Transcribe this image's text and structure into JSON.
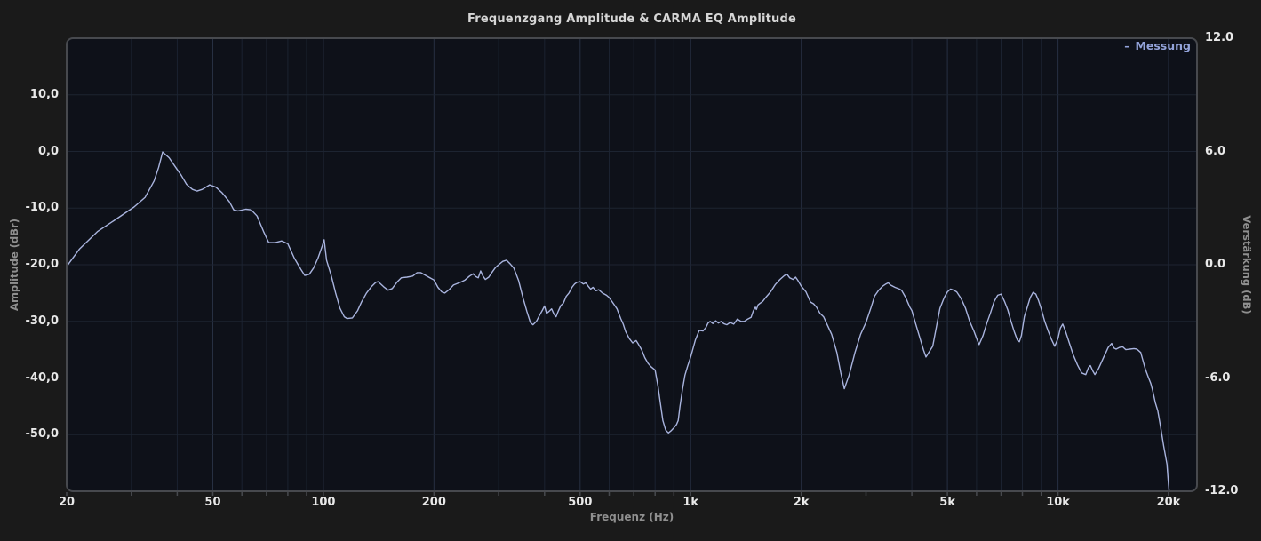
{
  "title": "Frequenzgang Amplitude & CARMA EQ Amplitude",
  "legend": {
    "dash": "–",
    "label": "Messung"
  },
  "axes": {
    "x": {
      "label": "Frequenz (Hz)",
      "scale": "log",
      "min": 20,
      "max": 24000,
      "ticks": [
        "20",
        "50",
        "100",
        "200",
        "500",
        "1k",
        "2k",
        "5k",
        "10k",
        "20k"
      ],
      "tick_values": [
        20,
        50,
        100,
        200,
        500,
        1000,
        2000,
        5000,
        10000,
        20000
      ]
    },
    "y_left": {
      "label": "Amplitude (dBr)",
      "min": -60,
      "max": 20,
      "ticks": [
        "10,0",
        "0,0",
        "-10,0",
        "-20,0",
        "-30,0",
        "-40,0",
        "-50,0"
      ],
      "tick_values": [
        10,
        0,
        -10,
        -20,
        -30,
        -40,
        -50
      ],
      "grid_values": [
        10,
        0,
        -10,
        -20,
        -30,
        -40,
        -50
      ]
    },
    "y_right": {
      "label": "Verstärkung (dB)",
      "min": -12,
      "max": 12,
      "ticks": [
        "12.0",
        "6.0",
        "0.0",
        "-6.0",
        "-12.0"
      ],
      "tick_values": [
        12,
        6,
        0,
        -6,
        -12
      ]
    }
  },
  "colors": {
    "outer_bg": "#1a1a1a",
    "plot_bg": "#0e1119",
    "grid_minor": "#1b2230",
    "grid_major": "#273042",
    "grid_h": "#1d2431",
    "border": "#47494e",
    "curve": "#a9b4de",
    "title_text": "#d6d6d6",
    "tick_text": "#e9e9e9",
    "axis_title_text": "#8f8f8f",
    "legend_text": "#93a3da"
  },
  "chart_data": {
    "type": "line",
    "title": "Frequenzgang Amplitude & CARMA EQ Amplitude",
    "xlabel": "Frequenz (Hz)",
    "ylabel_left": "Amplitude (dBr)",
    "ylabel_right": "Verstärkung (dB)",
    "x_scale": "log",
    "x_range": [
      20,
      24000
    ],
    "y_left_range": [
      -60,
      20
    ],
    "y_right_range": [
      -12,
      12
    ],
    "grid": true,
    "legend_position": "top-right",
    "series": [
      {
        "name": "Messung",
        "color": "#a9b4de",
        "units": "dBr",
        "points": [
          [
            20,
            -20.3
          ],
          [
            21.7,
            -17.2
          ],
          [
            24.3,
            -14.1
          ],
          [
            27.2,
            -12
          ],
          [
            30.5,
            -9.8
          ],
          [
            32.7,
            -8.1
          ],
          [
            34.6,
            -5.2
          ],
          [
            35.6,
            -2.8
          ],
          [
            36.5,
            -0.1
          ],
          [
            38,
            -1.1
          ],
          [
            39.5,
            -2.7
          ],
          [
            41,
            -4.2
          ],
          [
            42.4,
            -5.8
          ],
          [
            44,
            -6.7
          ],
          [
            45.3,
            -7
          ],
          [
            46.8,
            -6.7
          ],
          [
            49,
            -5.9
          ],
          [
            51,
            -6.3
          ],
          [
            53,
            -7.3
          ],
          [
            55.5,
            -8.9
          ],
          [
            57,
            -10.3
          ],
          [
            58.5,
            -10.5
          ],
          [
            61.5,
            -10.2
          ],
          [
            63.6,
            -10.3
          ],
          [
            66,
            -11.4
          ],
          [
            68.7,
            -14.1
          ],
          [
            71,
            -16.1
          ],
          [
            74,
            -16.1
          ],
          [
            77,
            -15.8
          ],
          [
            80,
            -16.3
          ],
          [
            83.3,
            -18.8
          ],
          [
            86.8,
            -20.8
          ],
          [
            89,
            -21.9
          ],
          [
            91.5,
            -21.7
          ],
          [
            94,
            -20.6
          ],
          [
            96.7,
            -18.8
          ],
          [
            99.3,
            -16.7
          ],
          [
            100.5,
            -15.6
          ],
          [
            102,
            -19.2
          ],
          [
            105,
            -21.9
          ],
          [
            108,
            -25
          ],
          [
            111,
            -27.7
          ],
          [
            114,
            -29.2
          ],
          [
            116,
            -29.5
          ],
          [
            120,
            -29.4
          ],
          [
            124,
            -28.1
          ],
          [
            127,
            -26.6
          ],
          [
            131,
            -25
          ],
          [
            135,
            -23.9
          ],
          [
            139,
            -23.1
          ],
          [
            141,
            -23
          ],
          [
            146,
            -23.9
          ],
          [
            150,
            -24.5
          ],
          [
            154,
            -24.2
          ],
          [
            159,
            -23
          ],
          [
            163,
            -22.3
          ],
          [
            169,
            -22.2
          ],
          [
            175,
            -22
          ],
          [
            180,
            -21.4
          ],
          [
            184,
            -21.4
          ],
          [
            190,
            -21.9
          ],
          [
            195,
            -22.3
          ],
          [
            200,
            -22.7
          ],
          [
            205,
            -24
          ],
          [
            210,
            -24.8
          ],
          [
            214,
            -25
          ],
          [
            220,
            -24.4
          ],
          [
            226,
            -23.6
          ],
          [
            232,
            -23.3
          ],
          [
            238,
            -23
          ],
          [
            243,
            -22.7
          ],
          [
            250,
            -22
          ],
          [
            256,
            -21.6
          ],
          [
            260,
            -22.1
          ],
          [
            264,
            -22.3
          ],
          [
            268,
            -21.1
          ],
          [
            272,
            -22
          ],
          [
            276,
            -22.6
          ],
          [
            282,
            -22.2
          ],
          [
            288,
            -21.3
          ],
          [
            294,
            -20.5
          ],
          [
            300,
            -20
          ],
          [
            308,
            -19.4
          ],
          [
            315,
            -19.2
          ],
          [
            322,
            -19.8
          ],
          [
            330,
            -20.6
          ],
          [
            340,
            -22.8
          ],
          [
            350,
            -26
          ],
          [
            358,
            -28.2
          ],
          [
            366,
            -30.2
          ],
          [
            372,
            -30.6
          ],
          [
            380,
            -30
          ],
          [
            388,
            -28.9
          ],
          [
            395,
            -28
          ],
          [
            400,
            -27.3
          ],
          [
            405,
            -28.6
          ],
          [
            412,
            -28.2
          ],
          [
            418,
            -27.8
          ],
          [
            425,
            -28.8
          ],
          [
            430,
            -29.2
          ],
          [
            436,
            -28.2
          ],
          [
            443,
            -27.2
          ],
          [
            450,
            -26.8
          ],
          [
            458,
            -25.6
          ],
          [
            466,
            -25
          ],
          [
            475,
            -24
          ],
          [
            483,
            -23.4
          ],
          [
            490,
            -23.1
          ],
          [
            500,
            -23
          ],
          [
            510,
            -23.4
          ],
          [
            518,
            -23.2
          ],
          [
            526,
            -23.8
          ],
          [
            534,
            -24.3
          ],
          [
            542,
            -24
          ],
          [
            552,
            -24.6
          ],
          [
            562,
            -24.4
          ],
          [
            575,
            -25
          ],
          [
            590,
            -25.4
          ],
          [
            600,
            -25.8
          ],
          [
            615,
            -26.8
          ],
          [
            630,
            -27.8
          ],
          [
            645,
            -29.5
          ],
          [
            655,
            -30.5
          ],
          [
            665,
            -31.8
          ],
          [
            680,
            -33
          ],
          [
            695,
            -33.8
          ],
          [
            710,
            -33.4
          ],
          [
            720,
            -34
          ],
          [
            735,
            -35
          ],
          [
            750,
            -36.4
          ],
          [
            765,
            -37.4
          ],
          [
            780,
            -38
          ],
          [
            800,
            -38.6
          ],
          [
            815,
            -41.5
          ],
          [
            826,
            -44.2
          ],
          [
            840,
            -47.5
          ],
          [
            855,
            -49.2
          ],
          [
            870,
            -49.7
          ],
          [
            885,
            -49.3
          ],
          [
            900,
            -48.8
          ],
          [
            915,
            -48.2
          ],
          [
            925,
            -47.5
          ],
          [
            935,
            -45
          ],
          [
            950,
            -42
          ],
          [
            965,
            -39.5
          ],
          [
            980,
            -38
          ],
          [
            1000,
            -36.3
          ],
          [
            1030,
            -33.3
          ],
          [
            1055,
            -31.6
          ],
          [
            1080,
            -31.7
          ],
          [
            1100,
            -31.1
          ],
          [
            1115,
            -30.3
          ],
          [
            1130,
            -30
          ],
          [
            1150,
            -30.4
          ],
          [
            1170,
            -29.9
          ],
          [
            1190,
            -30.3
          ],
          [
            1210,
            -30
          ],
          [
            1230,
            -30.4
          ],
          [
            1255,
            -30.6
          ],
          [
            1280,
            -30.2
          ],
          [
            1310,
            -30.5
          ],
          [
            1340,
            -29.6
          ],
          [
            1370,
            -30
          ],
          [
            1400,
            -30
          ],
          [
            1430,
            -29.6
          ],
          [
            1460,
            -29.3
          ],
          [
            1480,
            -28.2
          ],
          [
            1500,
            -27.5
          ],
          [
            1510,
            -27.9
          ],
          [
            1525,
            -27.1
          ],
          [
            1545,
            -26.8
          ],
          [
            1570,
            -26.5
          ],
          [
            1600,
            -25.8
          ],
          [
            1650,
            -24.8
          ],
          [
            1700,
            -23.5
          ],
          [
            1750,
            -22.6
          ],
          [
            1800,
            -21.9
          ],
          [
            1830,
            -21.7
          ],
          [
            1860,
            -22.3
          ],
          [
            1900,
            -22.6
          ],
          [
            1930,
            -22.2
          ],
          [
            1960,
            -22.8
          ],
          [
            2000,
            -23.8
          ],
          [
            2060,
            -24.8
          ],
          [
            2120,
            -26.6
          ],
          [
            2160,
            -26.9
          ],
          [
            2200,
            -27.5
          ],
          [
            2250,
            -28.6
          ],
          [
            2300,
            -29.2
          ],
          [
            2350,
            -30.5
          ],
          [
            2420,
            -32.3
          ],
          [
            2500,
            -35.5
          ],
          [
            2560,
            -39
          ],
          [
            2620,
            -41.9
          ],
          [
            2700,
            -39.5
          ],
          [
            2800,
            -35.5
          ],
          [
            2900,
            -32.3
          ],
          [
            3000,
            -30.2
          ],
          [
            3100,
            -27.5
          ],
          [
            3170,
            -25.5
          ],
          [
            3250,
            -24.5
          ],
          [
            3330,
            -23.8
          ],
          [
            3400,
            -23.4
          ],
          [
            3450,
            -23.2
          ],
          [
            3500,
            -23.6
          ],
          [
            3600,
            -24
          ],
          [
            3700,
            -24.3
          ],
          [
            3750,
            -24.5
          ],
          [
            3850,
            -25.8
          ],
          [
            3950,
            -27.5
          ],
          [
            4000,
            -28.1
          ],
          [
            4100,
            -30.5
          ],
          [
            4200,
            -32.8
          ],
          [
            4300,
            -35
          ],
          [
            4370,
            -36.3
          ],
          [
            4450,
            -35.5
          ],
          [
            4560,
            -34.4
          ],
          [
            4650,
            -31.5
          ],
          [
            4770,
            -27.7
          ],
          [
            4900,
            -25.8
          ],
          [
            5000,
            -24.8
          ],
          [
            5100,
            -24.3
          ],
          [
            5200,
            -24.5
          ],
          [
            5300,
            -24.8
          ],
          [
            5450,
            -26
          ],
          [
            5600,
            -27.7
          ],
          [
            5750,
            -30
          ],
          [
            5900,
            -31.7
          ],
          [
            6000,
            -33
          ],
          [
            6100,
            -34.1
          ],
          [
            6250,
            -32.5
          ],
          [
            6400,
            -30.3
          ],
          [
            6550,
            -28.5
          ],
          [
            6700,
            -26.5
          ],
          [
            6850,
            -25.4
          ],
          [
            7000,
            -25.2
          ],
          [
            7150,
            -26.5
          ],
          [
            7300,
            -28
          ],
          [
            7450,
            -30
          ],
          [
            7600,
            -31.8
          ],
          [
            7750,
            -33.3
          ],
          [
            7850,
            -33.6
          ],
          [
            7950,
            -32.5
          ],
          [
            8100,
            -29.2
          ],
          [
            8250,
            -27.5
          ],
          [
            8400,
            -25.8
          ],
          [
            8550,
            -24.9
          ],
          [
            8700,
            -25.2
          ],
          [
            8850,
            -26.3
          ],
          [
            9000,
            -27.8
          ],
          [
            9200,
            -30
          ],
          [
            9400,
            -31.7
          ],
          [
            9600,
            -33.2
          ],
          [
            9800,
            -34.4
          ],
          [
            10000,
            -33
          ],
          [
            10150,
            -31.2
          ],
          [
            10300,
            -30.5
          ],
          [
            10450,
            -31.5
          ],
          [
            10700,
            -33.5
          ],
          [
            11000,
            -35.9
          ],
          [
            11300,
            -37.7
          ],
          [
            11600,
            -39.1
          ],
          [
            11900,
            -39.4
          ],
          [
            12100,
            -38.2
          ],
          [
            12250,
            -37.8
          ],
          [
            12450,
            -38.8
          ],
          [
            12600,
            -39.4
          ],
          [
            12900,
            -38.3
          ],
          [
            13300,
            -36.4
          ],
          [
            13700,
            -34.6
          ],
          [
            14000,
            -33.9
          ],
          [
            14200,
            -34.7
          ],
          [
            14400,
            -34.9
          ],
          [
            14700,
            -34.6
          ],
          [
            15000,
            -34.5
          ],
          [
            15300,
            -35
          ],
          [
            15700,
            -34.9
          ],
          [
            16100,
            -34.8
          ],
          [
            16400,
            -34.9
          ],
          [
            16800,
            -35.5
          ],
          [
            17000,
            -36.7
          ],
          [
            17300,
            -38.5
          ],
          [
            17600,
            -39.8
          ],
          [
            17900,
            -41
          ],
          [
            18100,
            -42.2
          ],
          [
            18400,
            -44.3
          ],
          [
            18700,
            -45.8
          ],
          [
            19000,
            -48.4
          ],
          [
            19400,
            -52
          ],
          [
            19800,
            -55.2
          ],
          [
            20000,
            -58.9
          ],
          [
            20200,
            -62
          ]
        ]
      }
    ]
  }
}
